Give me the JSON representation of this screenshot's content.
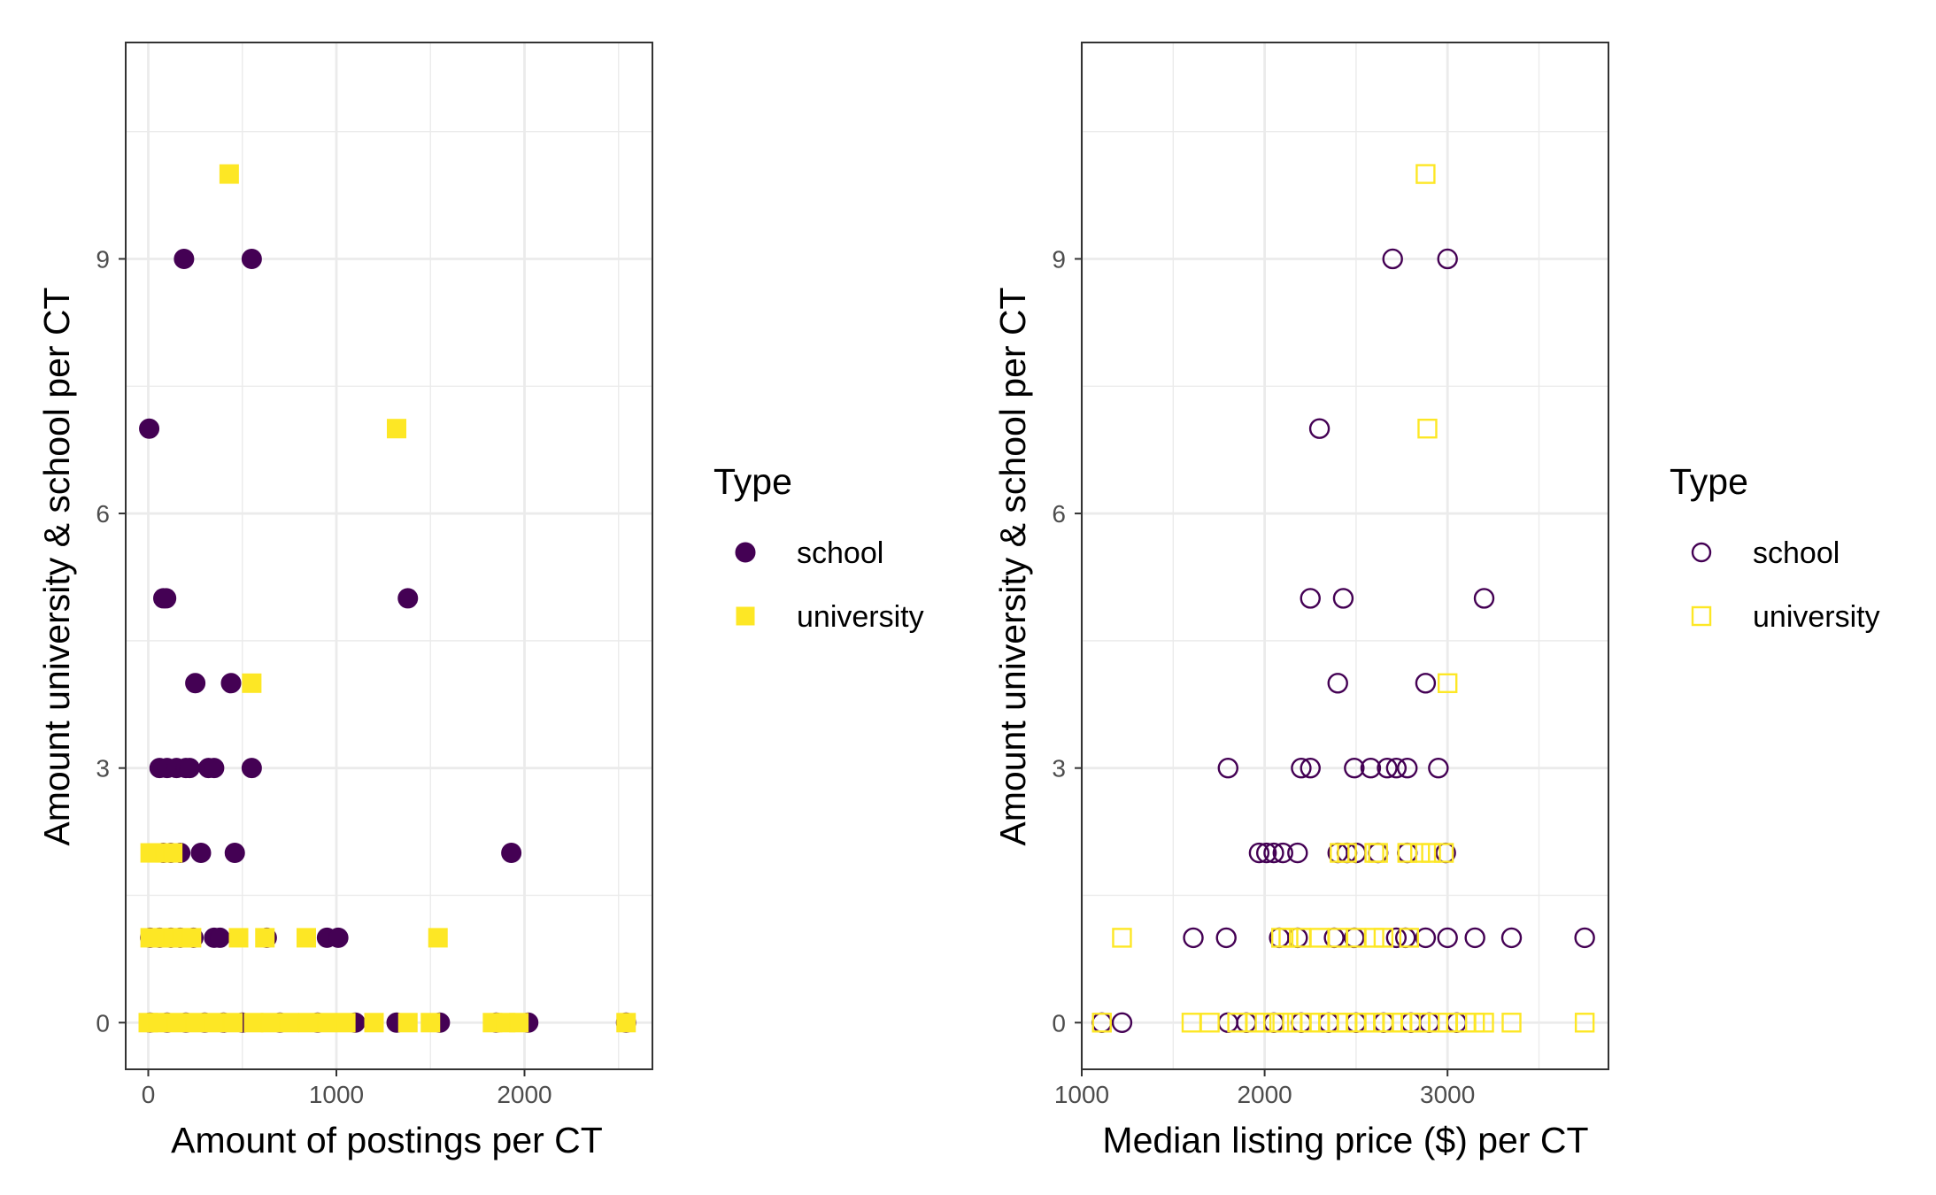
{
  "colors": {
    "school": "#440154",
    "university": "#FDE725"
  },
  "chart_data": [
    {
      "type": "scatter",
      "xlabel": "Amount of postings per CT",
      "ylabel": "Amount university & school per CT",
      "xlim": [
        -120,
        2680
      ],
      "ylim": [
        -0.55,
        11.55
      ],
      "xticks": [
        0,
        1000,
        2000
      ],
      "yticks": [
        0,
        3,
        6,
        9
      ],
      "grid": true,
      "marker_style": "filled",
      "legend": {
        "title": "Type",
        "placement": "right",
        "entries": [
          "school",
          "university"
        ]
      },
      "series": [
        {
          "name": "school",
          "shape": "circle",
          "points": [
            [
              190,
              9
            ],
            [
              550,
              9
            ],
            [
              5,
              7
            ],
            [
              80,
              5
            ],
            [
              95,
              5
            ],
            [
              1380,
              5
            ],
            [
              250,
              4
            ],
            [
              440,
              4
            ],
            [
              60,
              3
            ],
            [
              100,
              3
            ],
            [
              150,
              3
            ],
            [
              200,
              3
            ],
            [
              220,
              3
            ],
            [
              320,
              3
            ],
            [
              350,
              3
            ],
            [
              550,
              3
            ],
            [
              80,
              2
            ],
            [
              120,
              2
            ],
            [
              170,
              2
            ],
            [
              280,
              2
            ],
            [
              460,
              2
            ],
            [
              1930,
              2
            ],
            [
              10,
              1
            ],
            [
              60,
              1
            ],
            [
              120,
              1
            ],
            [
              170,
              1
            ],
            [
              240,
              1
            ],
            [
              350,
              1
            ],
            [
              380,
              1
            ],
            [
              630,
              1
            ],
            [
              950,
              1
            ],
            [
              1010,
              1
            ],
            [
              10,
              0
            ],
            [
              100,
              0
            ],
            [
              200,
              0
            ],
            [
              300,
              0
            ],
            [
              400,
              0
            ],
            [
              500,
              0
            ],
            [
              700,
              0
            ],
            [
              900,
              0
            ],
            [
              1100,
              0
            ],
            [
              1320,
              0
            ],
            [
              1550,
              0
            ],
            [
              1850,
              0
            ],
            [
              2020,
              0
            ],
            [
              2540,
              0
            ]
          ]
        },
        {
          "name": "university",
          "shape": "square",
          "points": [
            [
              430,
              10
            ],
            [
              1320,
              7
            ],
            [
              550,
              4
            ],
            [
              10,
              2
            ],
            [
              50,
              2
            ],
            [
              90,
              2
            ],
            [
              130,
              2
            ],
            [
              10,
              1
            ],
            [
              80,
              1
            ],
            [
              130,
              1
            ],
            [
              180,
              1
            ],
            [
              230,
              1
            ],
            [
              480,
              1
            ],
            [
              620,
              1
            ],
            [
              840,
              1
            ],
            [
              1540,
              1
            ],
            [
              0,
              0
            ],
            [
              50,
              0
            ],
            [
              150,
              0
            ],
            [
              250,
              0
            ],
            [
              350,
              0
            ],
            [
              450,
              0
            ],
            [
              560,
              0
            ],
            [
              650,
              0
            ],
            [
              750,
              0
            ],
            [
              850,
              0
            ],
            [
              950,
              0
            ],
            [
              1050,
              0
            ],
            [
              1200,
              0
            ],
            [
              1380,
              0
            ],
            [
              1500,
              0
            ],
            [
              1830,
              0
            ],
            [
              1900,
              0
            ],
            [
              1970,
              0
            ],
            [
              2540,
              0
            ]
          ]
        }
      ]
    },
    {
      "type": "scatter",
      "xlabel": "Median listing price ($) per CT",
      "ylabel": "Amount university & school per CT",
      "xlim": [
        1000,
        3880
      ],
      "ylim": [
        -0.55,
        11.55
      ],
      "xticks": [
        1000,
        2000,
        3000
      ],
      "yticks": [
        0,
        3,
        6,
        9
      ],
      "grid": true,
      "marker_style": "open",
      "legend": {
        "title": "Type",
        "placement": "right",
        "entries": [
          "school",
          "university"
        ]
      },
      "series": [
        {
          "name": "school",
          "shape": "circle",
          "points": [
            [
              2700,
              9
            ],
            [
              3000,
              9
            ],
            [
              2300,
              7
            ],
            [
              2250,
              5
            ],
            [
              2430,
              5
            ],
            [
              3200,
              5
            ],
            [
              2400,
              4
            ],
            [
              2880,
              4
            ],
            [
              1800,
              3
            ],
            [
              2200,
              3
            ],
            [
              2250,
              3
            ],
            [
              2490,
              3
            ],
            [
              2580,
              3
            ],
            [
              2670,
              3
            ],
            [
              2720,
              3
            ],
            [
              2780,
              3
            ],
            [
              2950,
              3
            ],
            [
              1970,
              2
            ],
            [
              2010,
              2
            ],
            [
              2050,
              2
            ],
            [
              2100,
              2
            ],
            [
              2180,
              2
            ],
            [
              2400,
              2
            ],
            [
              2450,
              2
            ],
            [
              2500,
              2
            ],
            [
              2620,
              2
            ],
            [
              2780,
              2
            ],
            [
              2990,
              2
            ],
            [
              1610,
              1
            ],
            [
              1790,
              1
            ],
            [
              2080,
              1
            ],
            [
              2180,
              1
            ],
            [
              2380,
              1
            ],
            [
              2490,
              1
            ],
            [
              2720,
              1
            ],
            [
              2770,
              1
            ],
            [
              2880,
              1
            ],
            [
              3000,
              1
            ],
            [
              3150,
              1
            ],
            [
              3350,
              1
            ],
            [
              3750,
              1
            ],
            [
              1110,
              0
            ],
            [
              1220,
              0
            ],
            [
              1800,
              0
            ],
            [
              1900,
              0
            ],
            [
              2050,
              0
            ],
            [
              2200,
              0
            ],
            [
              2350,
              0
            ],
            [
              2500,
              0
            ],
            [
              2650,
              0
            ],
            [
              2800,
              0
            ],
            [
              2900,
              0
            ],
            [
              3050,
              0
            ]
          ]
        },
        {
          "name": "university",
          "shape": "square",
          "points": [
            [
              2880,
              10
            ],
            [
              2890,
              7
            ],
            [
              3000,
              4
            ],
            [
              2410,
              2
            ],
            [
              2450,
              2
            ],
            [
              2600,
              2
            ],
            [
              2620,
              2
            ],
            [
              2780,
              2
            ],
            [
              2850,
              2
            ],
            [
              2910,
              2
            ],
            [
              2980,
              2
            ],
            [
              1220,
              1
            ],
            [
              2090,
              1
            ],
            [
              2130,
              1
            ],
            [
              2200,
              1
            ],
            [
              2300,
              1
            ],
            [
              2400,
              1
            ],
            [
              2500,
              1
            ],
            [
              2600,
              1
            ],
            [
              2650,
              1
            ],
            [
              2790,
              1
            ],
            [
              1110,
              0
            ],
            [
              1600,
              0
            ],
            [
              1700,
              0
            ],
            [
              1850,
              0
            ],
            [
              1950,
              0
            ],
            [
              2000,
              0
            ],
            [
              2080,
              0
            ],
            [
              2150,
              0
            ],
            [
              2200,
              0
            ],
            [
              2250,
              0
            ],
            [
              2300,
              0
            ],
            [
              2350,
              0
            ],
            [
              2400,
              0
            ],
            [
              2450,
              0
            ],
            [
              2500,
              0
            ],
            [
              2550,
              0
            ],
            [
              2600,
              0
            ],
            [
              2650,
              0
            ],
            [
              2700,
              0
            ],
            [
              2750,
              0
            ],
            [
              2800,
              0
            ],
            [
              2850,
              0
            ],
            [
              2950,
              0
            ],
            [
              3000,
              0
            ],
            [
              3100,
              0
            ],
            [
              3150,
              0
            ],
            [
              3200,
              0
            ],
            [
              3350,
              0
            ],
            [
              3750,
              0
            ]
          ]
        }
      ]
    }
  ]
}
